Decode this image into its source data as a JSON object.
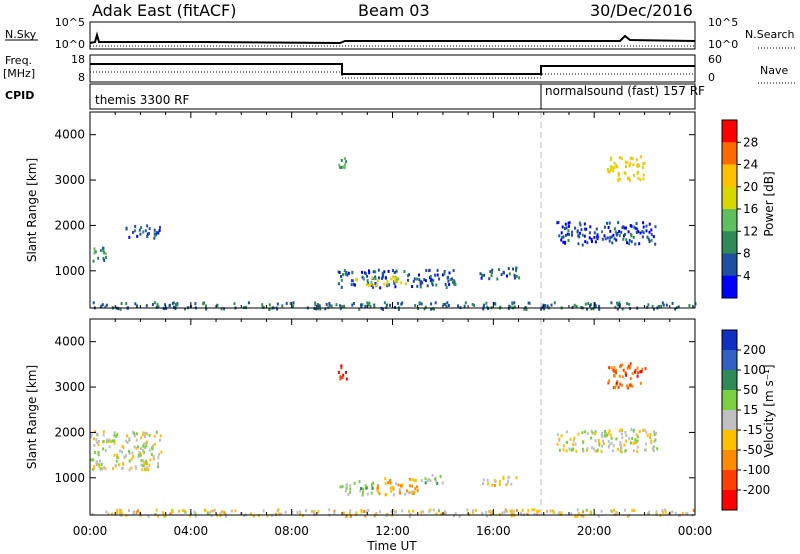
{
  "header": {
    "radar": "Adak East (fitACF)",
    "beam": "Beam 03",
    "date": "30/Dec/2016"
  },
  "panels": {
    "nsky_label": "N.Sky",
    "nsky_ticks": [
      "10^5",
      "10^0"
    ],
    "nsearch_label": "N.Search",
    "nsearch_ticks": [
      "10^5",
      "10^0"
    ],
    "freq_label": "Freq.",
    "freq_unit": "[MHz]",
    "freq_ticks": [
      "18",
      "8"
    ],
    "nave_label": "Nave",
    "nave_ticks": [
      "60",
      "0"
    ],
    "cpid_label": "CPID",
    "cpid_segments": [
      "themis 3300 RF",
      "normalsound (fast) 157 RF"
    ]
  },
  "axes": {
    "ylabel": "Slant Range [km]",
    "xlabel": "Time UT",
    "x_ticks": [
      "00:00",
      "04:00",
      "08:00",
      "12:00",
      "16:00",
      "20:00",
      "00:00"
    ],
    "y_ticks": [
      "4000",
      "3000",
      "2000",
      "1000"
    ]
  },
  "colorbars": {
    "power": {
      "label": "Power [dB]",
      "ticks": [
        "28",
        "24",
        "20",
        "16",
        "12",
        "8",
        "4"
      ],
      "colors": [
        "#ff0000",
        "#ff6a00",
        "#ffc000",
        "#d8d800",
        "#60c060",
        "#2e8b57",
        "#1e4fa0",
        "#0000ff"
      ]
    },
    "velocity": {
      "label": "Velocity [m s⁻¹]",
      "ticks": [
        "200",
        "100",
        "50",
        "15",
        "-15",
        "-50",
        "-100",
        "-200"
      ],
      "colors": [
        "#1030c0",
        "#3060c0",
        "#2e8b57",
        "#7ad040",
        "#c0c0c0",
        "#ffc000",
        "#ff8c00",
        "#ff4000",
        "#ff0000"
      ]
    }
  },
  "chart_data": [
    {
      "type": "heatmap",
      "title": "Power",
      "colorbar_label": "Power [dB]",
      "xlabel": "Time UT",
      "ylabel": "Slant Range [km]",
      "xlim": [
        0,
        24
      ],
      "ylim": [
        180,
        4500
      ],
      "clim": [
        0,
        32
      ],
      "regions": [
        {
          "t": [
            0.0,
            0.6
          ],
          "r": [
            1200,
            1600
          ],
          "value": 10
        },
        {
          "t": [
            1.4,
            2.8
          ],
          "r": [
            1750,
            2050
          ],
          "value": 6
        },
        {
          "t": [
            9.8,
            10.2
          ],
          "r": [
            3200,
            3550
          ],
          "value": 12
        },
        {
          "t": [
            9.8,
            14.5
          ],
          "r": [
            650,
            1050
          ],
          "value": 6
        },
        {
          "t": [
            10.5,
            12.5
          ],
          "r": [
            700,
            900
          ],
          "value": 18
        },
        {
          "t": [
            15.3,
            17.0
          ],
          "r": [
            850,
            1100
          ],
          "value": 6
        },
        {
          "t": [
            18.5,
            22.5
          ],
          "r": [
            1600,
            2100
          ],
          "value": 5
        },
        {
          "t": [
            20.5,
            22.0
          ],
          "r": [
            3000,
            3550
          ],
          "value": 20
        },
        {
          "t": [
            0.0,
            24.0
          ],
          "r": [
            180,
            330
          ],
          "value": 8
        }
      ]
    },
    {
      "type": "heatmap",
      "title": "Velocity",
      "colorbar_label": "Velocity [m s⁻¹]",
      "xlabel": "Time UT",
      "ylabel": "Slant Range [km]",
      "xlim": [
        0,
        24
      ],
      "ylim": [
        180,
        4500
      ],
      "clim": [
        -250,
        250
      ],
      "regions": [
        {
          "t": [
            0.0,
            2.8
          ],
          "r": [
            1200,
            2050
          ],
          "value": 0
        },
        {
          "t": [
            9.8,
            10.2
          ],
          "r": [
            3200,
            3550
          ],
          "value": -200
        },
        {
          "t": [
            9.8,
            11.2
          ],
          "r": [
            650,
            950
          ],
          "value": 30
        },
        {
          "t": [
            11.2,
            13.0
          ],
          "r": [
            650,
            1050
          ],
          "value": -70
        },
        {
          "t": [
            13.0,
            14.0
          ],
          "r": [
            900,
            1100
          ],
          "value": 40
        },
        {
          "t": [
            15.5,
            17.0
          ],
          "r": [
            850,
            1050
          ],
          "value": -40
        },
        {
          "t": [
            18.5,
            22.5
          ],
          "r": [
            1600,
            2100
          ],
          "value": 0
        },
        {
          "t": [
            20.5,
            22.0
          ],
          "r": [
            3000,
            3550
          ],
          "value": -150
        },
        {
          "t": [
            0.0,
            24.0
          ],
          "r": [
            180,
            330
          ],
          "value": -30
        }
      ]
    }
  ]
}
